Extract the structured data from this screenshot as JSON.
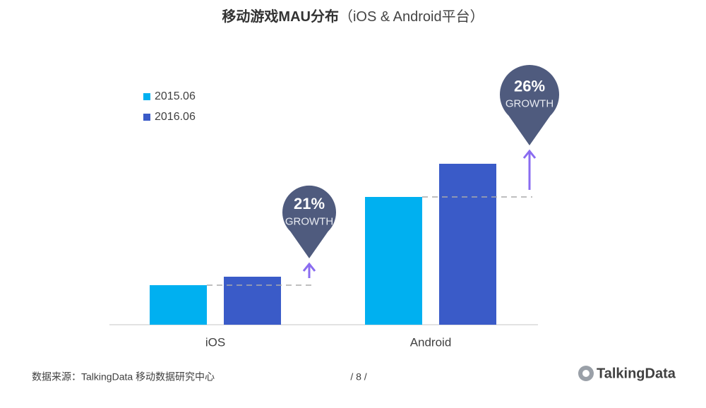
{
  "chart_data": {
    "type": "bar",
    "title": "移动游戏MAU分布",
    "subtitle": "（iOS & Android平台）",
    "categories": [
      "iOS",
      "Android"
    ],
    "series": [
      {
        "name": "2015.06",
        "color": "#00b0f0",
        "values": [
          56,
          181
        ]
      },
      {
        "name": "2016.06",
        "color": "#3a5bc8",
        "values": [
          68,
          228
        ]
      }
    ],
    "ylim": [
      0,
      330
    ],
    "annotations": [
      {
        "value": "21%",
        "text": "GROWTH"
      },
      {
        "value": "26%",
        "text": "GROWTH"
      }
    ],
    "annotation_color": "#4f5b7e",
    "arrow_color": "#8a6cf0",
    "legend": "upper left",
    "grid": false
  },
  "footer": {
    "source": "数据来源：TalkingData  移动数据研究中心",
    "page": "/  8  /",
    "logo": "TalkingData"
  }
}
